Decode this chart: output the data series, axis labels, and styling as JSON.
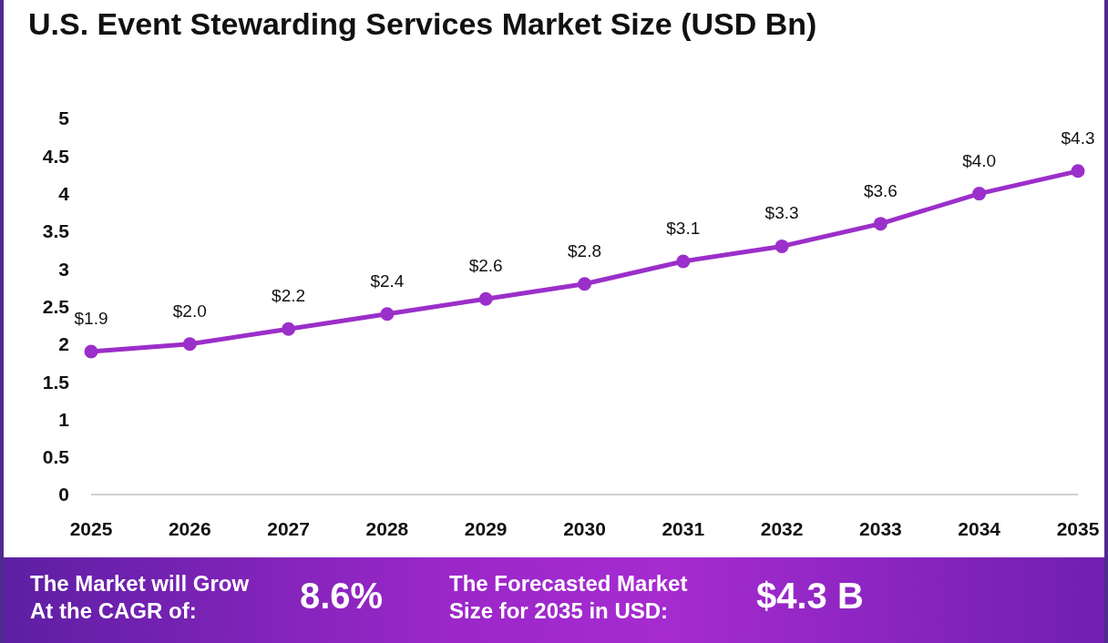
{
  "chart_data": {
    "type": "line",
    "title": "U.S. Event Stewarding Services Market Size (USD Bn)",
    "categories": [
      "2025",
      "2026",
      "2027",
      "2028",
      "2029",
      "2030",
      "2031",
      "2032",
      "2033",
      "2034",
      "2035"
    ],
    "series": [
      {
        "color": "#9b2fc9",
        "values": [
          1.9,
          2.0,
          2.2,
          2.4,
          2.6,
          2.8,
          3.1,
          3.3,
          3.6,
          4.0,
          4.3
        ],
        "value_labels": [
          "$1.9",
          "$2.0",
          "$2.2",
          "$2.4",
          "$2.6",
          "$2.8",
          "$3.1",
          "$3.3",
          "$3.6",
          "$4.0",
          "$4.3"
        ]
      }
    ],
    "ylim": [
      0,
      5
    ],
    "yticks": [
      0,
      0.5,
      1,
      1.5,
      2,
      2.5,
      3,
      3.5,
      4,
      4.5,
      5
    ],
    "marker": "circle",
    "line_style": "solid",
    "annotations": [
      "The Market will Grow At the CAGR of:",
      "8.6%",
      "The Forecasted Market Size for 2035 in USD:",
      "$4.3 B"
    ]
  }
}
